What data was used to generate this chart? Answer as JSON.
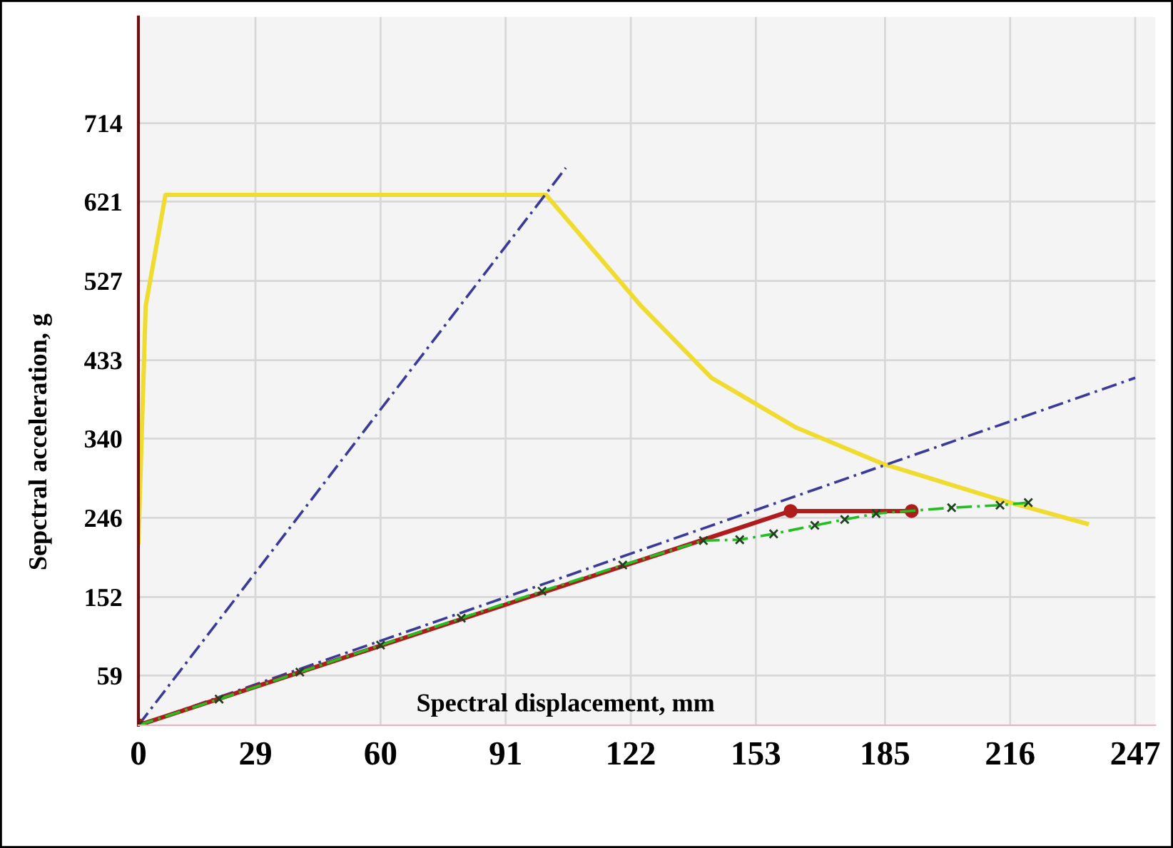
{
  "chart_data": {
    "type": "line",
    "xlabel": "Spectral displacement, mm",
    "ylabel": "Sepctral acceleration, g",
    "xlim": [
      0,
      252
    ],
    "ylim": [
      0,
      840
    ],
    "xticks": [
      0,
      29,
      60,
      91,
      122,
      153,
      185,
      216,
      247
    ],
    "yticks": [
      59,
      152,
      246,
      340,
      433,
      527,
      621,
      714
    ],
    "grid": true,
    "legend": false,
    "series": [
      {
        "color": "#f0dc30",
        "line_style": "solid",
        "marker": "none",
        "x": [
          0,
          1.8,
          6.7,
          101,
          124.6,
          142,
          163,
          184.5,
          213,
          235
        ],
        "values": [
          217,
          497,
          629,
          629,
          497,
          412,
          353,
          310,
          268,
          239
        ]
      },
      {
        "color": "#3a3a9a",
        "line_style": "dashed",
        "marker": "none",
        "x": [
          0,
          105.9
        ],
        "values": [
          0,
          661
        ]
      },
      {
        "color": "#3a3a9a",
        "line_style": "dashed",
        "marker": "none",
        "x": [
          0,
          247
        ],
        "values": [
          0,
          412
        ]
      },
      {
        "color": "#b01c1c",
        "line_style": "solid",
        "marker": "circle",
        "x": [
          0,
          161.6,
          191.6
        ],
        "values": [
          0,
          254,
          254
        ]
      },
      {
        "color": "#20c020",
        "line_style": "dashed",
        "marker": "cross",
        "x": [
          0,
          20,
          40,
          60,
          80,
          100,
          120,
          140,
          149,
          157.4,
          167.6,
          175,
          182.8,
          201.5,
          213.5,
          220.5
        ],
        "values": [
          0,
          31,
          63,
          95,
          127,
          159,
          190,
          219,
          220,
          227,
          237,
          244,
          251,
          258,
          261,
          264
        ]
      }
    ]
  }
}
